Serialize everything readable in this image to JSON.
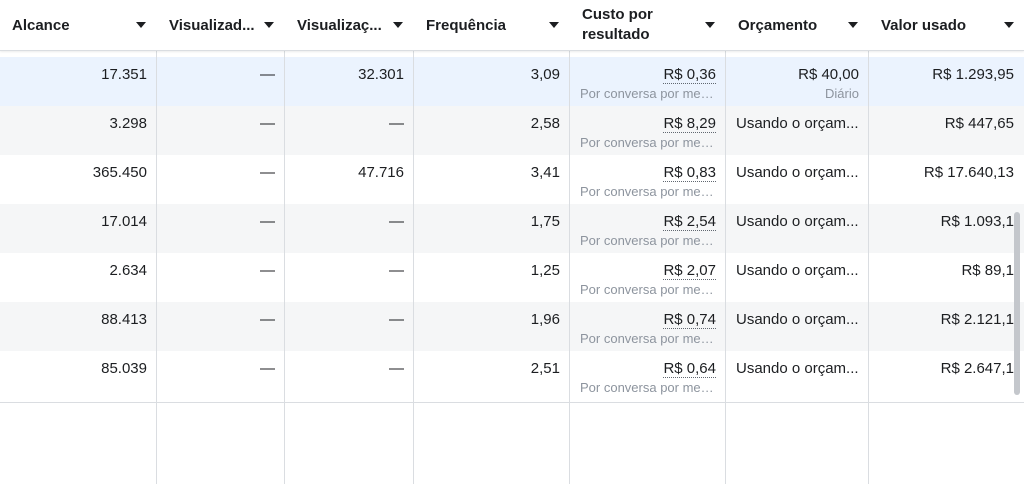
{
  "header": {
    "columns": [
      {
        "label": "Alcance"
      },
      {
        "label": "Visualizad..."
      },
      {
        "label": "Visualizaç..."
      },
      {
        "label": "Frequência"
      },
      {
        "label": "Custo por resultado"
      },
      {
        "label": "Orçamento"
      },
      {
        "label": "Valor usado"
      }
    ]
  },
  "rows": [
    {
      "alcance": "17.351",
      "visualizadores": "—",
      "visualizacoes": "32.301",
      "frequencia": "3,09",
      "custo": "R$ 0,36",
      "custo_sub": "Por conversa por men...",
      "orcamento": "R$ 40,00",
      "orcamento_sub": "Diário",
      "valor": "R$ 1.293,95"
    },
    {
      "alcance": "3.298",
      "visualizadores": "—",
      "visualizacoes": "—",
      "frequencia": "2,58",
      "custo": "R$ 8,29",
      "custo_sub": "Por conversa por men...",
      "orcamento": "Usando o orçam...",
      "orcamento_sub": "",
      "valor": "R$ 447,65"
    },
    {
      "alcance": "365.450",
      "visualizadores": "—",
      "visualizacoes": "47.716",
      "frequencia": "3,41",
      "custo": "R$ 0,83",
      "custo_sub": "Por conversa por men...",
      "orcamento": "Usando o orçam...",
      "orcamento_sub": "",
      "valor": "R$ 17.640,13"
    },
    {
      "alcance": "17.014",
      "visualizadores": "—",
      "visualizacoes": "—",
      "frequencia": "1,75",
      "custo": "R$ 2,54",
      "custo_sub": "Por conversa por men...",
      "orcamento": "Usando o orçam...",
      "orcamento_sub": "",
      "valor": "R$ 1.093,1"
    },
    {
      "alcance": "2.634",
      "visualizadores": "—",
      "visualizacoes": "—",
      "frequencia": "1,25",
      "custo": "R$ 2,07",
      "custo_sub": "Por conversa por men...",
      "orcamento": "Usando o orçam...",
      "orcamento_sub": "",
      "valor": "R$ 89,1"
    },
    {
      "alcance": "88.413",
      "visualizadores": "—",
      "visualizacoes": "—",
      "frequencia": "1,96",
      "custo": "R$ 0,74",
      "custo_sub": "Por conversa por men...",
      "orcamento": "Usando o orçam...",
      "orcamento_sub": "",
      "valor": "R$ 2.121,1"
    },
    {
      "alcance": "85.039",
      "visualizadores": "—",
      "visualizacoes": "—",
      "frequencia": "2,51",
      "custo": "R$ 0,64",
      "custo_sub": "Por conversa por men...",
      "orcamento": "Usando o orçam...",
      "orcamento_sub": "",
      "valor": "R$ 2.647,1"
    }
  ],
  "colors": {
    "selected_row": "#ebf3fe",
    "alt_row": "#f5f6f7",
    "border": "#dadde1",
    "muted_text": "#8d949e"
  }
}
